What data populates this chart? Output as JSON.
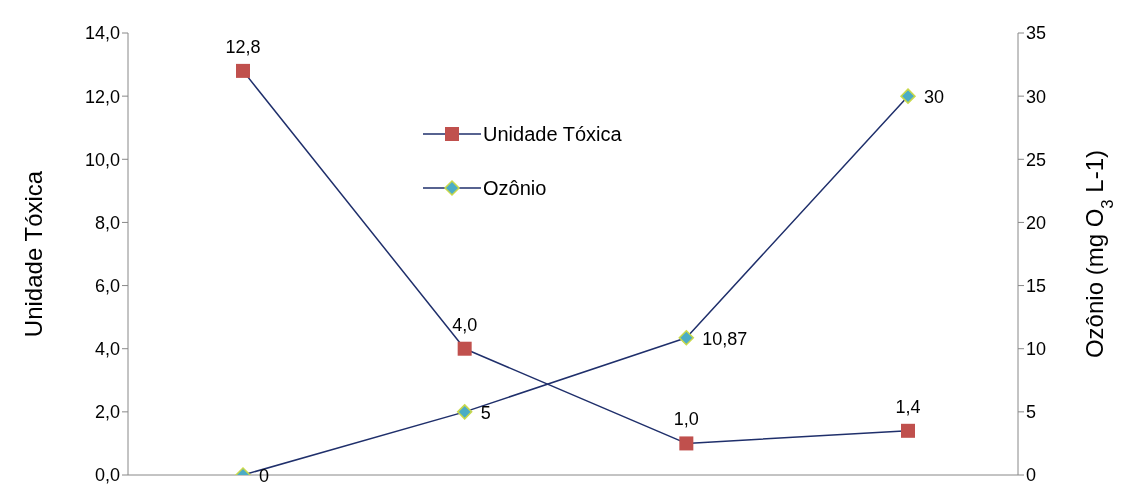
{
  "chart_data": {
    "type": "line",
    "ylabel": "Unidade Tóxica",
    "y2label": "Ozônio (mg O$_{3}$ L-1)",
    "categories": [
      null,
      null,
      null,
      null
    ],
    "series": [
      {
        "name": "Unidade Tóxica",
        "color": "#c0504d",
        "marker": "square",
        "values": [
          12.8,
          4.0,
          1.0,
          1.4
        ],
        "value_labels": [
          "12,8",
          "4,0",
          "1,0",
          "1,4"
        ]
      },
      {
        "name": "Ozônio",
        "color": "#4bacc6",
        "marker": "diamond",
        "axis": "y2",
        "values": [
          0,
          5,
          10.87,
          30
        ],
        "value_labels": [
          "0",
          "5",
          "10,87",
          "30"
        ]
      }
    ],
    "ylim": [
      0,
      14
    ],
    "yticks": [
      {
        "value": 0,
        "label": "0,0"
      },
      {
        "value": 2,
        "label": "2,0"
      },
      {
        "value": 4,
        "label": "4,0"
      },
      {
        "value": 6,
        "label": "6,0"
      },
      {
        "value": 8,
        "label": "8,0"
      },
      {
        "value": 10,
        "label": "10,0"
      },
      {
        "value": 12,
        "label": "12,0"
      },
      {
        "value": 14,
        "label": "14,0"
      }
    ],
    "y2lim": [
      0,
      35
    ],
    "y2ticks": [
      0,
      5,
      10,
      15,
      20,
      25,
      30,
      35
    ],
    "grid": false,
    "legend": "top",
    "line_style": "solid"
  }
}
